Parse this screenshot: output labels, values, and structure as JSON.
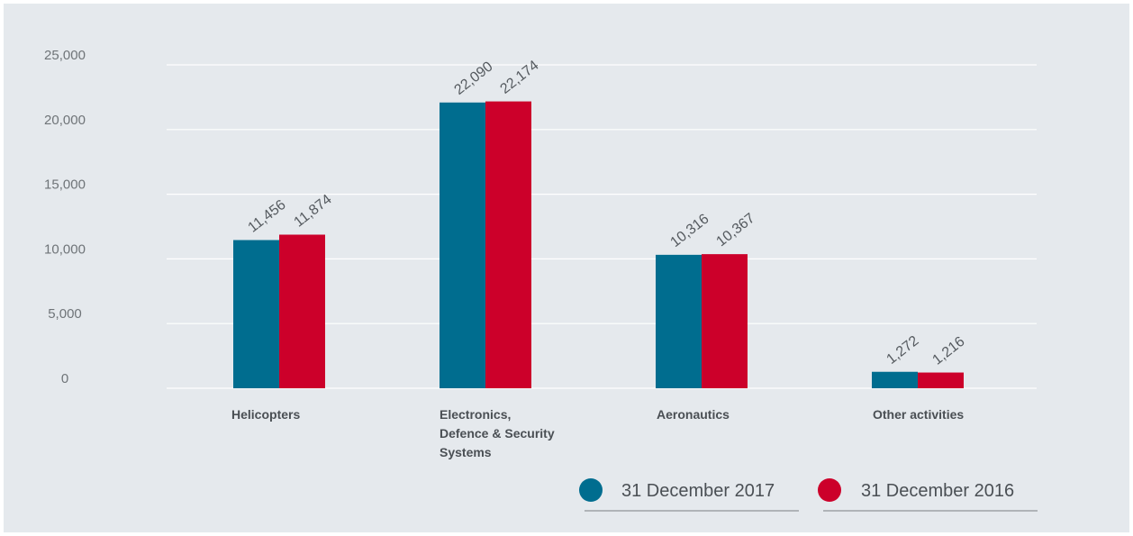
{
  "chart_data": {
    "type": "bar",
    "categories": [
      [
        "Helicopters"
      ],
      [
        "Electronics,",
        "Defence & Security",
        "Systems"
      ],
      [
        "Aeronautics"
      ],
      [
        "Other activities"
      ]
    ],
    "series": [
      {
        "name": "31 December 2017",
        "values": [
          11456,
          22090,
          10316,
          1272
        ],
        "labels": [
          "11,456",
          "22,090",
          "10,316",
          "1,272"
        ],
        "color": "#006d8f"
      },
      {
        "name": "31 December 2016",
        "values": [
          11874,
          22174,
          10367,
          1216
        ],
        "labels": [
          "11,874",
          "22,174",
          "10,367",
          "1,216"
        ],
        "color": "#cc002a"
      }
    ],
    "yticks": [
      0,
      5000,
      10000,
      15000,
      20000,
      25000
    ],
    "ytick_labels": [
      "0",
      "5,000",
      "10,000",
      "15,000",
      "20,000",
      "25,000"
    ],
    "ylim": [
      0,
      25000
    ],
    "grid": true,
    "legend": "bottom-right"
  },
  "colors": {
    "background": "#e5e9ed",
    "grid": "#ffffff",
    "text": "#4a4f54"
  }
}
